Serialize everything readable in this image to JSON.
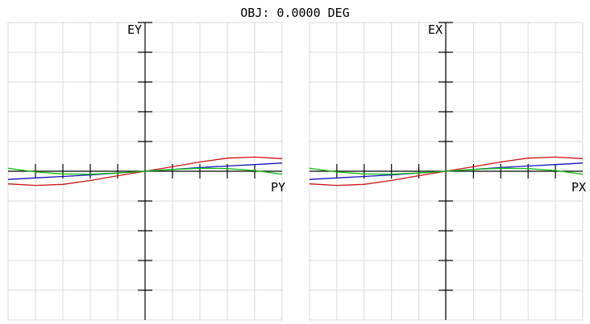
{
  "title": "OBJ: 0.0000 DEG",
  "colors": {
    "grid": "#d8d8d8",
    "axis": "#000000",
    "series_red": "#d01010",
    "series_blue": "#1010c0",
    "series_green": "#10c010"
  },
  "chart_data": [
    {
      "type": "line",
      "title": "",
      "xlabel": "PY",
      "ylabel": "EY",
      "xlim": [
        -1,
        1
      ],
      "ylim": [
        -1,
        1
      ],
      "grid": true,
      "series": [
        {
          "color": "#d01010",
          "x": [
            -1,
            -0.8,
            -0.6,
            -0.4,
            -0.2,
            0,
            0.2,
            0.4,
            0.6,
            0.8,
            1
          ],
          "y": [
            -0.085,
            -0.095,
            -0.088,
            -0.062,
            -0.03,
            0,
            0.03,
            0.062,
            0.088,
            0.095,
            0.085
          ]
        },
        {
          "color": "#1010c0",
          "x": [
            -1,
            -0.8,
            -0.6,
            -0.4,
            -0.2,
            0,
            0.2,
            0.4,
            0.6,
            0.8,
            1
          ],
          "y": [
            -0.055,
            -0.045,
            -0.035,
            -0.025,
            -0.012,
            0,
            0.012,
            0.025,
            0.035,
            0.045,
            0.055
          ]
        },
        {
          "color": "#10c010",
          "x": [
            -1,
            -0.8,
            -0.6,
            -0.4,
            -0.2,
            0,
            0.2,
            0.4,
            0.6,
            0.8,
            1
          ],
          "y": [
            0.02,
            -0.005,
            -0.018,
            -0.02,
            -0.012,
            0,
            0.012,
            0.02,
            0.018,
            0.005,
            -0.02
          ]
        }
      ]
    },
    {
      "type": "line",
      "title": "",
      "xlabel": "PX",
      "ylabel": "EX",
      "xlim": [
        -1,
        1
      ],
      "ylim": [
        -1,
        1
      ],
      "grid": true,
      "series": [
        {
          "color": "#d01010",
          "x": [
            -1,
            -0.8,
            -0.6,
            -0.4,
            -0.2,
            0,
            0.2,
            0.4,
            0.6,
            0.8,
            1
          ],
          "y": [
            -0.085,
            -0.095,
            -0.088,
            -0.062,
            -0.03,
            0,
            0.03,
            0.062,
            0.088,
            0.095,
            0.085
          ]
        },
        {
          "color": "#1010c0",
          "x": [
            -1,
            -0.8,
            -0.6,
            -0.4,
            -0.2,
            0,
            0.2,
            0.4,
            0.6,
            0.8,
            1
          ],
          "y": [
            -0.055,
            -0.045,
            -0.035,
            -0.025,
            -0.012,
            0,
            0.012,
            0.025,
            0.035,
            0.045,
            0.055
          ]
        },
        {
          "color": "#10c010",
          "x": [
            -1,
            -0.8,
            -0.6,
            -0.4,
            -0.2,
            0,
            0.2,
            0.4,
            0.6,
            0.8,
            1
          ],
          "y": [
            0.02,
            -0.005,
            -0.018,
            -0.02,
            -0.012,
            0,
            0.012,
            0.02,
            0.018,
            0.005,
            -0.02
          ]
        }
      ]
    }
  ]
}
